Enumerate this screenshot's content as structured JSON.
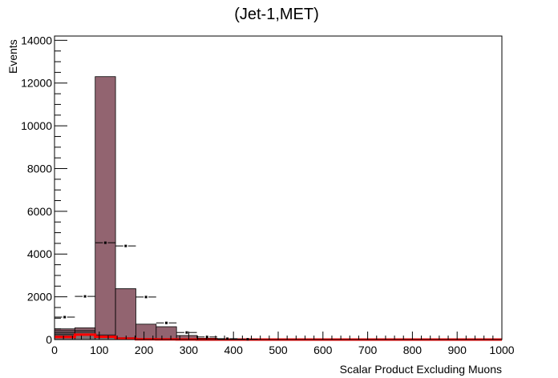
{
  "chart_data": {
    "type": "bar",
    "title": "(Jet-1,MET)",
    "xlabel": "Scalar Product Excluding Muons",
    "ylabel": "Events",
    "xlim": [
      0,
      1000
    ],
    "ylim": [
      0,
      14200
    ],
    "bin_width": 45.4545,
    "x_ticks": [
      "0",
      "100",
      "200",
      "300",
      "400",
      "500",
      "600",
      "700",
      "800",
      "900",
      "1000"
    ],
    "y_ticks": [
      "0",
      "2000",
      "4000",
      "6000",
      "8000",
      "10000",
      "12000",
      "14000"
    ],
    "stack_color": "#926470",
    "overlay_color": "#ff0000",
    "stack_values": [
      500,
      550,
      12300,
      2380,
      720,
      600,
      190,
      60,
      20,
      10,
      5,
      3,
      2,
      1,
      1,
      0,
      0,
      0,
      0,
      0,
      0,
      0
    ],
    "lower_layers": [
      {
        "color": "#333333",
        "values": [
          420,
          440,
          220,
          90,
          30,
          10,
          5,
          0,
          0,
          0,
          0,
          0,
          0,
          0,
          0,
          0,
          0,
          0,
          0,
          0,
          0,
          0
        ]
      },
      {
        "color": "#555555",
        "values": [
          330,
          350,
          180,
          70,
          20,
          8,
          3,
          0,
          0,
          0,
          0,
          0,
          0,
          0,
          0,
          0,
          0,
          0,
          0,
          0,
          0,
          0
        ]
      },
      {
        "color": "#777777",
        "values": [
          250,
          270,
          140,
          50,
          15,
          5,
          2,
          0,
          0,
          0,
          0,
          0,
          0,
          0,
          0,
          0,
          0,
          0,
          0,
          0,
          0,
          0
        ]
      },
      {
        "color": "#999999",
        "values": [
          180,
          200,
          100,
          40,
          10,
          4,
          1,
          0,
          0,
          0,
          0,
          0,
          0,
          0,
          0,
          0,
          0,
          0,
          0,
          0,
          0,
          0
        ]
      }
    ],
    "overlay_values": [
      120,
      230,
      130,
      40,
      15,
      8,
      3,
      2,
      1,
      1,
      0,
      0,
      0,
      0,
      0,
      0,
      0,
      0,
      0,
      0,
      0,
      0
    ],
    "data_points": [
      {
        "x": 22.7,
        "y": 1050
      },
      {
        "x": 68.2,
        "y": 2020
      },
      {
        "x": 113.6,
        "y": 4530
      },
      {
        "x": 159.1,
        "y": 4380
      },
      {
        "x": 204.5,
        "y": 1990
      },
      {
        "x": 250.0,
        "y": 780
      },
      {
        "x": 295.5,
        "y": 330
      },
      {
        "x": 340.9,
        "y": 120
      },
      {
        "x": 386.4,
        "y": 40
      },
      {
        "x": 431.8,
        "y": 15
      }
    ]
  }
}
